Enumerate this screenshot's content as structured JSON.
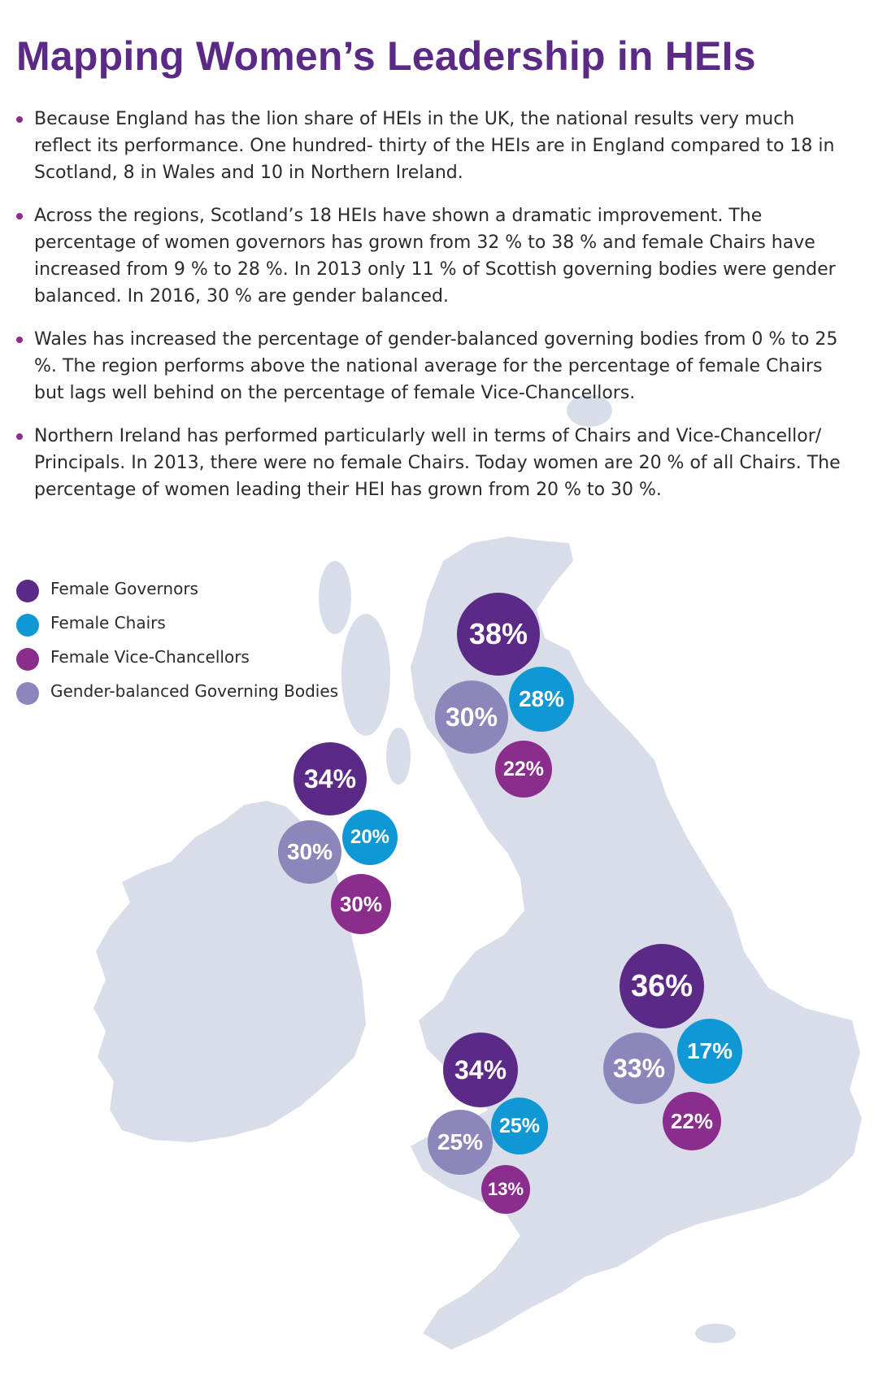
{
  "title": "Mapping Women’s Leadership in HEIs",
  "bullets": [
    "Because England has the lion share of HEIs in the UK, the national results very much reflect its performance. One hundred- thirty of the HEIs are in England compared to 18 in Scotland, 8 in Wales and 10 in Northern Ireland.",
    "Across the regions, Scotland’s 18 HEIs have shown a dramatic improvement. The percentage of women governors has grown from 32 % to 38 % and female Chairs have increased from 9 % to 28 %. In 2013 only 11 % of Scottish governing bodies were gender balanced. In 2016, 30 % are gender balanced.",
    "Wales has increased the percentage of gender-balanced governing bodies from 0 % to 25 %. The region performs above the national average for the percentage of female Chairs but lags well behind on the percentage of female Vice-Chancellors.",
    "Northern Ireland has performed particularly well in terms of Chairs and Vice-Chancellor/ Principals. In 2013, there were no female Chairs. Today women are 20 % of all Chairs. The percentage of women leading their HEI has grown from 20 % to 30 %."
  ],
  "legend": [
    {
      "label": "Female Governors",
      "color": "#5b2a86"
    },
    {
      "label": "Female Chairs",
      "color": "#0f98d4"
    },
    {
      "label": "Female Vice-Chancellors",
      "color": "#8a2d8c"
    },
    {
      "label": "Gender-balanced Governing Bodies",
      "color": "#8b87bb"
    }
  ],
  "colors": {
    "map_land": "#d9dde9",
    "title": "#5b2a86"
  },
  "regions": [
    {
      "region": "Scotland",
      "female_governors": "38%",
      "female_chairs": "28%",
      "female_vice_chancellors": "22%",
      "gender_balanced_governing_bodies": "30%"
    },
    {
      "region": "Northern Ireland",
      "female_governors": "34%",
      "female_chairs": "20%",
      "female_vice_chancellors": "30%",
      "gender_balanced_governing_bodies": "30%"
    },
    {
      "region": "England",
      "female_governors": "36%",
      "female_chairs": "17%",
      "female_vice_chancellors": "22%",
      "gender_balanced_governing_bodies": "33%"
    },
    {
      "region": "Wales",
      "female_governors": "34%",
      "female_chairs": "25%",
      "female_vice_chancellors": "13%",
      "gender_balanced_governing_bodies": "25%"
    }
  ]
}
